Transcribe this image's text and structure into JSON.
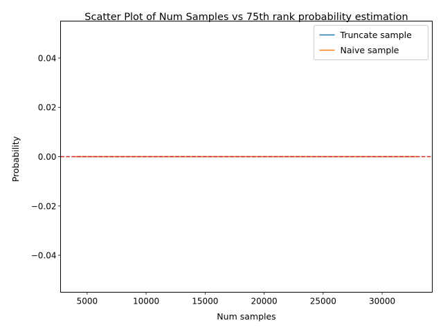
{
  "chart_data": {
    "type": "line",
    "title": "Scatter Plot of Num Samples vs 75th rank probability estimation",
    "xlabel": "Num samples",
    "ylabel": "Probability",
    "xlim": [
      2750,
      34250
    ],
    "ylim": [
      -0.055,
      0.055
    ],
    "xticks": [
      5000,
      10000,
      15000,
      20000,
      25000,
      30000
    ],
    "yticks": [
      0.04,
      0.02,
      0.0,
      -0.02,
      -0.04
    ],
    "xtick_labels": [
      "5000",
      "10000",
      "15000",
      "20000",
      "25000",
      "30000"
    ],
    "ytick_labels": [
      "0.04",
      "0.02",
      "0.00",
      "−0.02",
      "−0.04"
    ],
    "series": [
      {
        "name": "Truncate sample",
        "color": "#1f77b4",
        "x": [
          4000,
          33000
        ],
        "y": [
          0,
          0
        ]
      },
      {
        "name": "Naive sample",
        "color": "#ff7f0e",
        "x": [
          4000,
          33000
        ],
        "y": [
          0,
          0
        ]
      }
    ],
    "reference_line": {
      "y": 0,
      "color": "#d62728",
      "style": "dashed"
    },
    "legend": {
      "position": "upper right"
    },
    "grid": false
  }
}
